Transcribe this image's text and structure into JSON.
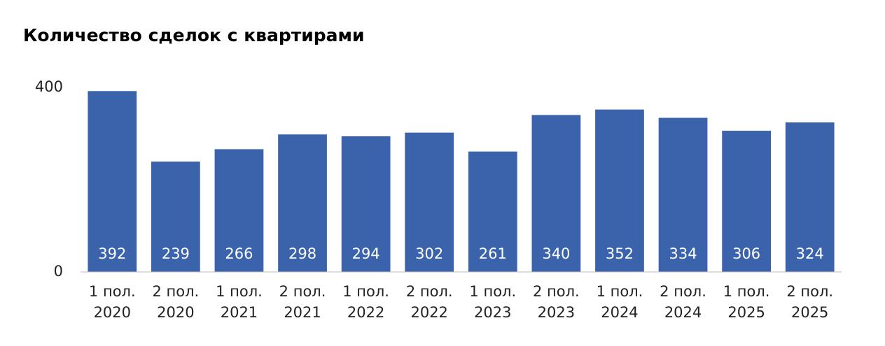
{
  "chart_data": {
    "type": "bar",
    "title": "Количество сделок с квартирами",
    "categories": [
      [
        "1 пол.",
        "2020"
      ],
      [
        "2 пол.",
        "2020"
      ],
      [
        "1 пол.",
        "2021"
      ],
      [
        "2 пол.",
        "2021"
      ],
      [
        "1 пол.",
        "2022"
      ],
      [
        "2 пол.",
        "2022"
      ],
      [
        "1 пол.",
        "2023"
      ],
      [
        "2 пол.",
        "2023"
      ],
      [
        "1 пол.",
        "2024"
      ],
      [
        "2 пол.",
        "2024"
      ],
      [
        "1 пол.",
        "2025"
      ],
      [
        "2 пол.",
        "2025"
      ]
    ],
    "values": [
      392,
      239,
      266,
      298,
      294,
      302,
      261,
      340,
      352,
      334,
      306,
      324
    ],
    "color": "#3a63ab",
    "ylim": [
      0,
      400
    ],
    "yticks": [
      0,
      400
    ],
    "grid": false
  }
}
